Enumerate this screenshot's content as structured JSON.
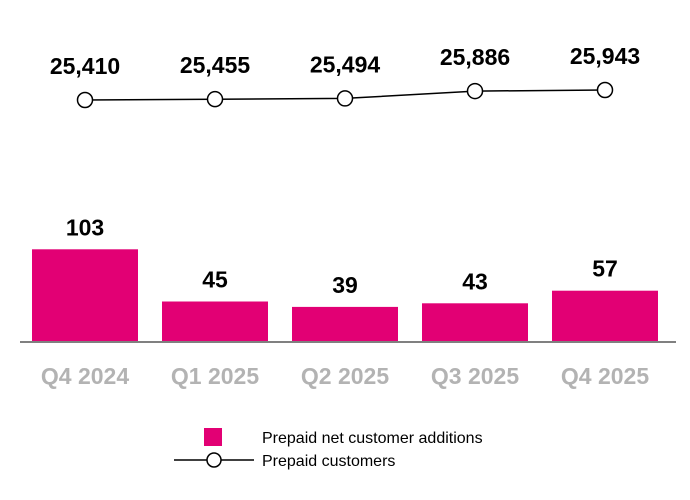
{
  "chart_data": {
    "type": "bar+line",
    "categories": [
      "Q4 2024",
      "Q1 2025",
      "Q2 2025",
      "Q3 2025",
      "Q4 2025"
    ],
    "series": [
      {
        "name": "Prepaid net customer additions",
        "type": "bar",
        "values": [
          103,
          45,
          39,
          43,
          57
        ],
        "labels": [
          "103",
          "45",
          "39",
          "43",
          "57"
        ],
        "color": "#E20074"
      },
      {
        "name": "Prepaid customers",
        "type": "line",
        "values": [
          25410,
          25455,
          25494,
          25886,
          25943
        ],
        "labels": [
          "25,410",
          "25,455",
          "25,494",
          "25,886",
          "25,943"
        ],
        "color": "#000000"
      }
    ],
    "legend": {
      "placement": "bottom",
      "items": [
        "Prepaid net customer additions",
        "Prepaid customers"
      ]
    },
    "grid": false,
    "label_color": "#b3b3b3"
  }
}
